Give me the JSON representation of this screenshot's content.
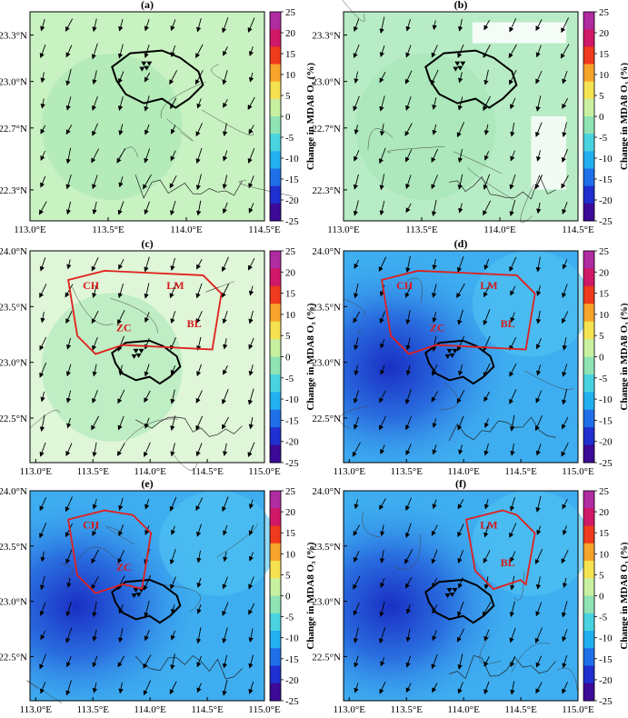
{
  "figure": {
    "colorbar_label": "Change in MDA8 O₃ (%)",
    "colorbar_ticks": [
      "25",
      "20",
      "15",
      "10",
      "5",
      "0",
      "-5",
      "-10",
      "-15",
      "-20",
      "-25"
    ],
    "colorbar_range": [
      -25,
      25
    ],
    "colorbar_colors": [
      "#3b0a96",
      "#1f2fd0",
      "#1f6fe8",
      "#22b0f0",
      "#49d3e0",
      "#8fe3b4",
      "#c8f0a0",
      "#f5e250",
      "#f7a42b",
      "#ef3a1d",
      "#d01868",
      "#b02aa0"
    ]
  },
  "chart_data": [
    {
      "type": "heatmap",
      "title": "(a)",
      "xticks": [
        "113.0°E",
        "113.5°E",
        "114.0°E",
        "114.5°E"
      ],
      "yticks": [
        "23.3°N",
        "23.0°N",
        "22.7°N",
        "22.3°N"
      ],
      "xlim": [
        113.0,
        114.5
      ],
      "ylim": [
        22.1,
        23.45
      ],
      "field_color": "#c9f2c2",
      "dominant_change_percent": -3,
      "regions": [],
      "wind_direction": "southwest"
    },
    {
      "type": "heatmap",
      "title": "(b)",
      "xticks": [
        "113.0°E",
        "113.5°E",
        "114.0°E",
        "114.5°E"
      ],
      "yticks": [
        "23.3°N",
        "23.0°N",
        "22.7°N",
        "22.3°N"
      ],
      "xlim": [
        113.0,
        114.5
      ],
      "ylim": [
        22.1,
        23.45
      ],
      "field_color": "#b8ecc6",
      "dominant_change_percent": -4,
      "regions": [],
      "wind_direction": "southwest"
    },
    {
      "type": "heatmap",
      "title": "(c)",
      "xticks": [
        "113.0°E",
        "113.5°E",
        "114.0°E",
        "114.5°E",
        "115.0°E"
      ],
      "yticks": [
        "24.0°N",
        "23.5°N",
        "23.0°N",
        "22.5°N"
      ],
      "xlim": [
        112.95,
        115.0
      ],
      "ylim": [
        22.1,
        24.0
      ],
      "field_color": "#dff6d8",
      "dominant_change_percent": -1,
      "regions": [
        "CH",
        "LM",
        "ZC",
        "BL"
      ],
      "wind_direction": "southwest"
    },
    {
      "type": "heatmap",
      "title": "(d)",
      "xticks": [
        "113.0°E",
        "113.5°E",
        "114.0°E",
        "114.5°E",
        "115.0°E"
      ],
      "yticks": [
        "24.0°N",
        "23.5°N",
        "23.0°N",
        "22.5°N"
      ],
      "xlim": [
        112.95,
        115.0
      ],
      "ylim": [
        22.1,
        24.0
      ],
      "field_color": "#3eaef0",
      "dominant_change_percent": -12,
      "regions": [
        "CH",
        "LM",
        "ZC",
        "BL"
      ],
      "wind_direction": "southwest"
    },
    {
      "type": "heatmap",
      "title": "(e)",
      "xticks": [
        "113.0°E",
        "113.5°E",
        "114.0°E",
        "114.5°E",
        "115.0°E"
      ],
      "yticks": [
        "24.0°N",
        "23.5°N",
        "23.0°N",
        "22.5°N"
      ],
      "xlim": [
        112.95,
        115.0
      ],
      "ylim": [
        22.1,
        24.0
      ],
      "field_color": "#3eaef0",
      "dominant_change_percent": -12,
      "regions": [
        "CH",
        "ZC"
      ],
      "wind_direction": "southwest"
    },
    {
      "type": "heatmap",
      "title": "(f)",
      "xticks": [
        "113.0°E",
        "113.5°E",
        "114.0°E",
        "114.5°E",
        "115.0°E"
      ],
      "yticks": [
        "24.0°N",
        "23.5°N",
        "23.0°N",
        "22.5°N"
      ],
      "xlim": [
        112.95,
        115.0
      ],
      "ylim": [
        22.1,
        24.0
      ],
      "field_color": "#3eaef0",
      "dominant_change_percent": -12,
      "regions": [
        "LM",
        "BL"
      ],
      "wind_direction": "southwest"
    }
  ]
}
